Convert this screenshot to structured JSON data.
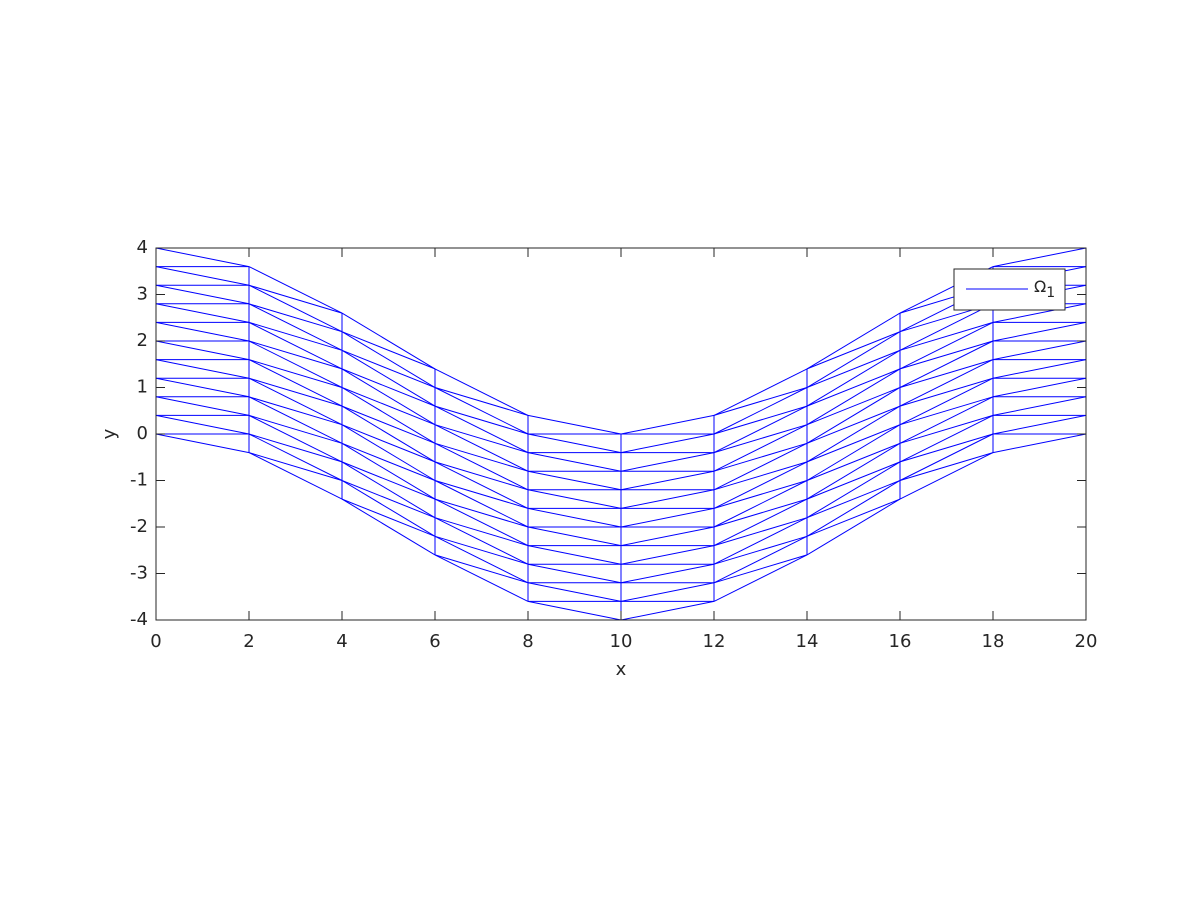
{
  "chart_data": {
    "type": "mesh",
    "color": "#0000ff",
    "xlabel": "x",
    "ylabel": "y",
    "legend": {
      "text": "Ω",
      "subscript": "1"
    },
    "legend_corner": "top-right",
    "x": [
      0,
      2,
      4,
      6,
      8,
      10,
      12,
      14,
      16,
      18,
      20
    ],
    "y": [
      [
        0,
        0.4,
        0.8,
        1.2,
        1.6,
        2,
        2.4,
        2.8,
        3.2,
        3.6,
        4
      ],
      [
        -0.4,
        0,
        0.4,
        0.8,
        1.2,
        1.6,
        2,
        2.4,
        2.8,
        3.2,
        3.6
      ],
      [
        -1.4,
        -1,
        -0.6,
        -0.2,
        0.2,
        0.6,
        1,
        1.4,
        1.8,
        2.2,
        2.6
      ],
      [
        -2.6,
        -2.2,
        -1.8,
        -1.4,
        -1,
        -0.6,
        -0.2,
        0.2,
        0.6,
        1,
        1.4
      ],
      [
        -3.6,
        -3.2,
        -2.8,
        -2.4,
        -2,
        -1.6,
        -1.2,
        -0.8,
        -0.4,
        0,
        0.4
      ],
      [
        -4,
        -3.6,
        -3.2,
        -2.8,
        -2.4,
        -2,
        -1.6,
        -1.2,
        -0.8,
        -0.4,
        0
      ],
      [
        -3.6,
        -3.2,
        -2.8,
        -2.4,
        -2,
        -1.6,
        -1.2,
        -0.8,
        -0.4,
        0,
        0.4
      ],
      [
        -2.6,
        -2.2,
        -1.8,
        -1.4,
        -1,
        -0.6,
        -0.2,
        0.2,
        0.6,
        1,
        1.4
      ],
      [
        -1.4,
        -1,
        -0.6,
        -0.2,
        0.2,
        0.6,
        1,
        1.4,
        1.8,
        2.2,
        2.6
      ],
      [
        -0.4,
        0,
        0.4,
        0.8,
        1.2,
        1.6,
        2,
        2.4,
        2.8,
        3.2,
        3.6
      ],
      [
        0,
        0.4,
        0.8,
        1.2,
        1.6,
        2,
        2.4,
        2.8,
        3.2,
        3.6,
        4
      ]
    ],
    "xlim": [
      0,
      20
    ],
    "xticks": [
      0,
      2,
      4,
      6,
      8,
      10,
      12,
      14,
      16,
      18,
      20
    ],
    "ylim": [
      -4,
      4
    ],
    "yticks": [
      -4,
      -3,
      -2,
      -1,
      0,
      1,
      2,
      3,
      4
    ]
  }
}
